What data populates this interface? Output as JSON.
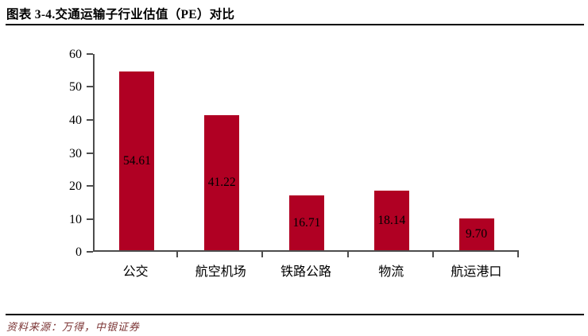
{
  "header": {
    "title": "图表 3-4.交通运输子行业估值（PE）对比"
  },
  "footer": {
    "source": "资料来源：万得，中银证券"
  },
  "chart_data": {
    "type": "bar",
    "title": "交通运输子行业估值（PE）对比",
    "categories": [
      "公交",
      "航空机场",
      "铁路公路",
      "物流",
      "航运港口"
    ],
    "values": [
      54.61,
      41.22,
      16.71,
      18.14,
      9.7
    ],
    "value_labels": [
      "54.61",
      "41.22",
      "16.71",
      "18.14",
      "9.70"
    ],
    "xlabel": "",
    "ylabel": "",
    "ylim": [
      0,
      60
    ],
    "yticks": [
      0,
      10,
      20,
      30,
      40,
      50,
      60
    ],
    "grid": false,
    "legend": false,
    "value_label_position": "inside-center",
    "bar_color": "#B00023",
    "axis_color": "#4D4D4D",
    "value_label_color": "#000000"
  }
}
